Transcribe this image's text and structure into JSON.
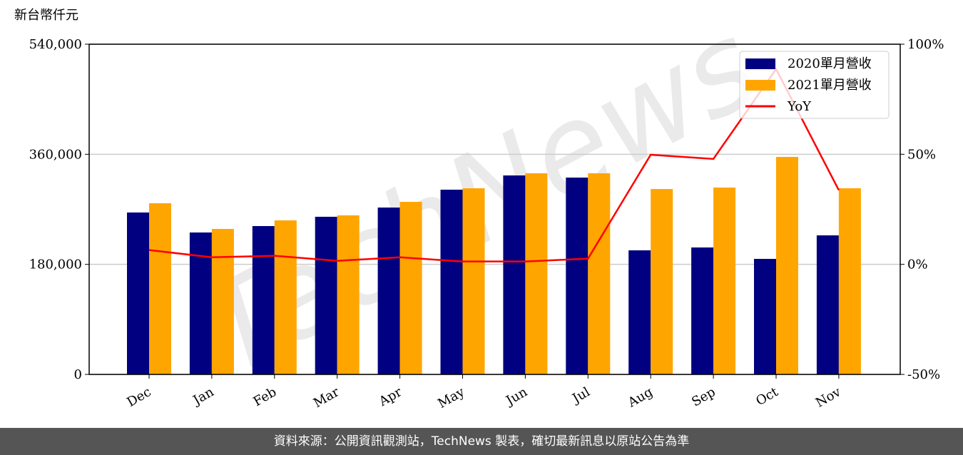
{
  "chart_data": {
    "type": "bar-line",
    "y_label": "新台幣仟元",
    "watermark": "TechNews",
    "footer": "資料來源：公開資訊觀測站，TechNews 製表，確切最新訊息以原站公告為準",
    "categories": [
      "Dec",
      "Jan",
      "Feb",
      "Mar",
      "Apr",
      "May",
      "Jun",
      "Jul",
      "Aug",
      "Sep",
      "Oct",
      "Nov"
    ],
    "series": [
      {
        "name": "2020單月營收",
        "color": "#000080",
        "kind": "bar",
        "values": [
          264800,
          232100,
          242600,
          257800,
          272900,
          302100,
          325400,
          321900,
          202900,
          207600,
          188900,
          227400
        ]
      },
      {
        "name": "2021單月營收",
        "color": "#ffa500",
        "kind": "bar",
        "values": [
          279900,
          237900,
          251900,
          260100,
          282200,
          304400,
          328900,
          328900,
          303200,
          305600,
          355700,
          304400
        ]
      },
      {
        "name": "YoY",
        "color": "#ff0000",
        "kind": "line",
        "axis": "y2",
        "values": [
          6.5,
          3.2,
          3.9,
          1.6,
          3.2,
          1.3,
          1.3,
          2.6,
          49.8,
          47.9,
          88.7,
          33.7
        ]
      }
    ],
    "ylim": [
      0,
      540000
    ],
    "yticks": [
      0,
      {
        "value": 180000,
        "label": "180,000"
      },
      {
        "value": 360000,
        "label": "360,000"
      },
      {
        "value": 540000,
        "label": "540,000"
      }
    ],
    "y2lim": [
      -50,
      100
    ],
    "y2ticks": [
      {
        "value": -50,
        "label": "-50%"
      },
      {
        "value": 0,
        "label": "0%"
      },
      {
        "value": 50,
        "label": "50%"
      },
      {
        "value": 100,
        "label": "100%"
      }
    ],
    "grid": true,
    "legend": "upper right"
  }
}
